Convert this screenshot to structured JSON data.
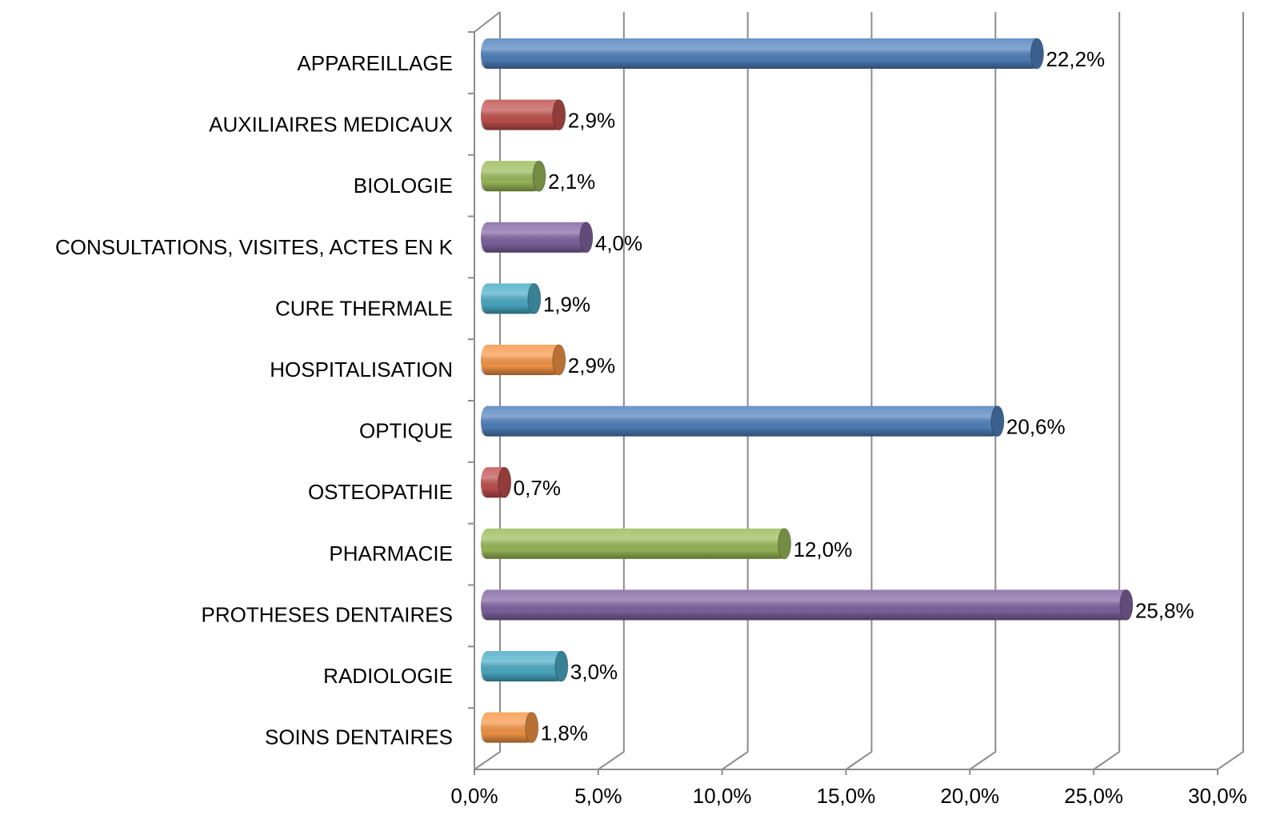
{
  "chart_data": {
    "type": "bar",
    "orientation": "horizontal",
    "categories": [
      "APPAREILLAGE",
      "AUXILIAIRES MEDICAUX",
      "BIOLOGIE",
      "CONSULTATIONS, VISITES, ACTES EN K",
      "CURE THERMALE",
      "HOSPITALISATION",
      "OPTIQUE",
      "OSTEOPATHIE",
      "PHARMACIE",
      "PROTHESES DENTAIRES",
      "RADIOLOGIE",
      "SOINS DENTAIRES"
    ],
    "values": [
      22.2,
      2.9,
      2.1,
      4.0,
      1.9,
      2.9,
      20.6,
      0.7,
      12.0,
      25.8,
      3.0,
      1.8
    ],
    "value_labels": [
      "22,2%",
      "2,9%",
      "2,1%",
      "4,0%",
      "1,9%",
      "2,9%",
      "20,6%",
      "0,7%",
      "12,0%",
      "25,8%",
      "3,0%",
      "1,8%"
    ],
    "colors": [
      "#4f81bd",
      "#c0504d",
      "#9bbb59",
      "#8064a2",
      "#4bacc6",
      "#f79646",
      "#4f81bd",
      "#c0504d",
      "#9bbb59",
      "#8064a2",
      "#4bacc6",
      "#f79646"
    ],
    "xlim": [
      0,
      30
    ],
    "xticks": [
      {
        "value": 0,
        "label": "0,0%"
      },
      {
        "value": 5,
        "label": "5,0%"
      },
      {
        "value": 10,
        "label": "10,0%"
      },
      {
        "value": 15,
        "label": "15,0%"
      },
      {
        "value": 20,
        "label": "20,0%"
      },
      {
        "value": 25,
        "label": "25,0%"
      },
      {
        "value": 30,
        "label": "30,0%"
      }
    ],
    "grid": true
  }
}
